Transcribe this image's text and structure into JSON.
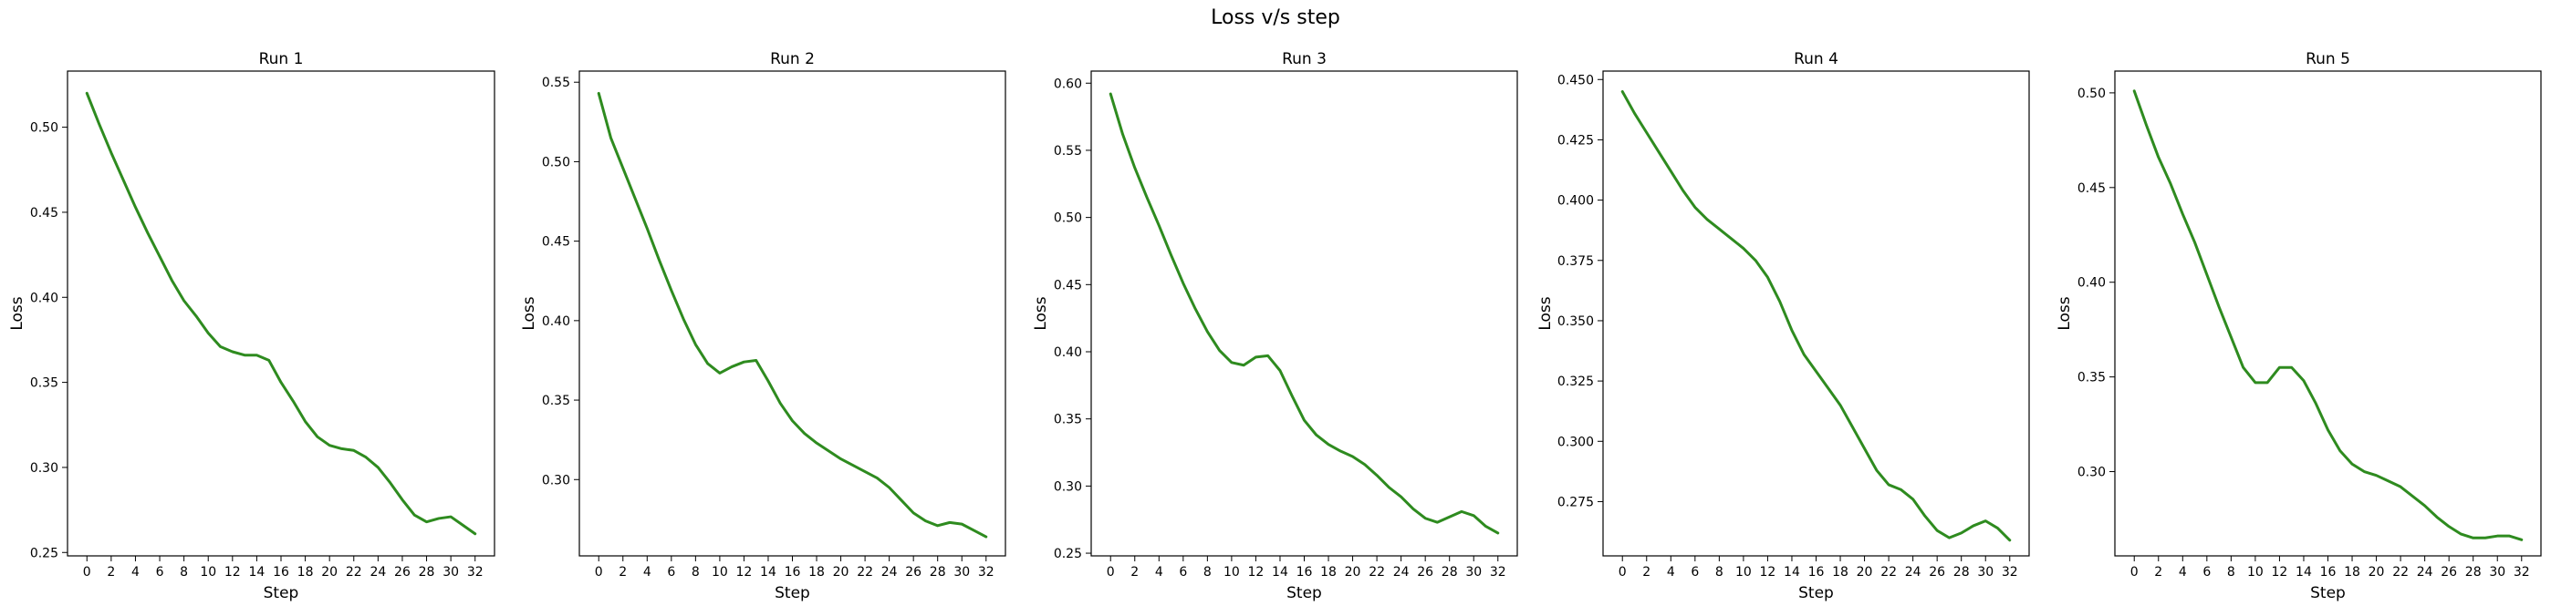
{
  "figure": {
    "suptitle": "Loss v/s step"
  },
  "style": {
    "line_color": "#2e8b1f",
    "axis_color": "#000000",
    "background": "#ffffff"
  },
  "chart_data": [
    {
      "type": "line",
      "title": "Run 1",
      "xlabel": "Step",
      "ylabel": "Loss",
      "xlim": [
        -1.6,
        33.6
      ],
      "ylim": [
        0.248,
        0.533
      ],
      "x_ticks": [
        0,
        2,
        4,
        6,
        8,
        10,
        12,
        14,
        16,
        18,
        20,
        22,
        24,
        26,
        28,
        30,
        32
      ],
      "y_ticks": [
        0.25,
        0.3,
        0.35,
        0.4,
        0.45,
        0.5
      ],
      "y_tick_labels": [
        "0.25",
        "0.30",
        "0.35",
        "0.40",
        "0.45",
        "0.50"
      ],
      "x": [
        0,
        1,
        2,
        3,
        4,
        5,
        6,
        7,
        8,
        9,
        10,
        11,
        12,
        13,
        14,
        15,
        16,
        17,
        18,
        19,
        20,
        21,
        22,
        23,
        24,
        25,
        26,
        27,
        28,
        29,
        30,
        31,
        32
      ],
      "series": [
        {
          "values": [
            0.52,
            0.502,
            0.485,
            0.469,
            0.453,
            0.438,
            0.424,
            0.41,
            0.398,
            0.389,
            0.379,
            0.371,
            0.368,
            0.366,
            0.366,
            0.363,
            0.35,
            0.339,
            0.327,
            0.318,
            0.313,
            0.311,
            0.31,
            0.306,
            0.3,
            0.291,
            0.281,
            0.272,
            0.268,
            0.27,
            0.271,
            0.266,
            0.261
          ]
        }
      ]
    },
    {
      "type": "line",
      "title": "Run 2",
      "xlabel": "Step",
      "ylabel": "Loss",
      "xlim": [
        -1.6,
        33.6
      ],
      "ylim": [
        0.252,
        0.557
      ],
      "x_ticks": [
        0,
        2,
        4,
        6,
        8,
        10,
        12,
        14,
        16,
        18,
        20,
        22,
        24,
        26,
        28,
        30,
        32
      ],
      "y_ticks": [
        0.3,
        0.35,
        0.4,
        0.45,
        0.5,
        0.55
      ],
      "y_tick_labels": [
        "0.30",
        "0.35",
        "0.40",
        "0.45",
        "0.50",
        "0.55"
      ],
      "x": [
        0,
        1,
        2,
        3,
        4,
        5,
        6,
        7,
        8,
        9,
        10,
        11,
        12,
        13,
        14,
        15,
        16,
        17,
        18,
        19,
        20,
        21,
        22,
        23,
        24,
        25,
        26,
        27,
        28,
        29,
        30,
        31,
        32
      ],
      "series": [
        {
          "values": [
            0.543,
            0.515,
            0.496,
            0.477,
            0.458,
            0.438,
            0.419,
            0.401,
            0.385,
            0.373,
            0.367,
            0.371,
            0.374,
            0.375,
            0.362,
            0.348,
            0.337,
            0.329,
            0.323,
            0.318,
            0.313,
            0.309,
            0.305,
            0.301,
            0.295,
            0.287,
            0.279,
            0.274,
            0.271,
            0.273,
            0.272,
            0.268,
            0.264
          ]
        }
      ]
    },
    {
      "type": "line",
      "title": "Run 3",
      "xlabel": "Step",
      "ylabel": "Loss",
      "xlim": [
        -1.6,
        33.6
      ],
      "ylim": [
        0.248,
        0.609
      ],
      "x_ticks": [
        0,
        2,
        4,
        6,
        8,
        10,
        12,
        14,
        16,
        18,
        20,
        22,
        24,
        26,
        28,
        30,
        32
      ],
      "y_ticks": [
        0.25,
        0.3,
        0.35,
        0.4,
        0.45,
        0.5,
        0.55,
        0.6
      ],
      "y_tick_labels": [
        "0.25",
        "0.30",
        "0.35",
        "0.40",
        "0.45",
        "0.50",
        "0.55",
        "0.60"
      ],
      "x": [
        0,
        1,
        2,
        3,
        4,
        5,
        6,
        7,
        8,
        9,
        10,
        11,
        12,
        13,
        14,
        15,
        16,
        17,
        18,
        19,
        20,
        21,
        22,
        23,
        24,
        25,
        26,
        27,
        28,
        29,
        30,
        31,
        32
      ],
      "series": [
        {
          "values": [
            0.592,
            0.562,
            0.537,
            0.515,
            0.494,
            0.472,
            0.451,
            0.432,
            0.415,
            0.401,
            0.392,
            0.39,
            0.396,
            0.397,
            0.386,
            0.367,
            0.349,
            0.338,
            0.331,
            0.326,
            0.322,
            0.316,
            0.308,
            0.299,
            0.292,
            0.283,
            0.276,
            0.273,
            0.277,
            0.281,
            0.278,
            0.27,
            0.265
          ]
        }
      ]
    },
    {
      "type": "line",
      "title": "Run 4",
      "xlabel": "Step",
      "ylabel": "Loss",
      "xlim": [
        -1.6,
        33.6
      ],
      "ylim": [
        0.2525,
        0.4535
      ],
      "x_ticks": [
        0,
        2,
        4,
        6,
        8,
        10,
        12,
        14,
        16,
        18,
        20,
        22,
        24,
        26,
        28,
        30,
        32
      ],
      "y_ticks": [
        0.275,
        0.3,
        0.325,
        0.35,
        0.375,
        0.4,
        0.425,
        0.45
      ],
      "y_tick_labels": [
        "0.275",
        "0.300",
        "0.325",
        "0.350",
        "0.375",
        "0.400",
        "0.425",
        "0.450"
      ],
      "x": [
        0,
        1,
        2,
        3,
        4,
        5,
        6,
        7,
        8,
        9,
        10,
        11,
        12,
        13,
        14,
        15,
        16,
        17,
        18,
        19,
        20,
        21,
        22,
        23,
        24,
        25,
        26,
        27,
        28,
        29,
        30,
        31,
        32
      ],
      "series": [
        {
          "values": [
            0.445,
            0.436,
            0.428,
            0.42,
            0.412,
            0.404,
            0.397,
            0.392,
            0.388,
            0.384,
            0.38,
            0.375,
            0.368,
            0.358,
            0.346,
            0.336,
            0.329,
            0.322,
            0.315,
            0.306,
            0.297,
            0.288,
            0.282,
            0.28,
            0.276,
            0.269,
            0.263,
            0.26,
            0.262,
            0.265,
            0.267,
            0.264,
            0.259
          ]
        }
      ]
    },
    {
      "type": "line",
      "title": "Run 5",
      "xlabel": "Step",
      "ylabel": "Loss",
      "xlim": [
        -1.6,
        33.6
      ],
      "ylim": [
        0.2555,
        0.5115
      ],
      "x_ticks": [
        0,
        2,
        4,
        6,
        8,
        10,
        12,
        14,
        16,
        18,
        20,
        22,
        24,
        26,
        28,
        30,
        32
      ],
      "y_ticks": [
        0.3,
        0.35,
        0.4,
        0.45,
        0.5
      ],
      "y_tick_labels": [
        "0.30",
        "0.35",
        "0.40",
        "0.45",
        "0.50"
      ],
      "x": [
        0,
        1,
        2,
        3,
        4,
        5,
        6,
        7,
        8,
        9,
        10,
        11,
        12,
        13,
        14,
        15,
        16,
        17,
        18,
        19,
        20,
        21,
        22,
        23,
        24,
        25,
        26,
        27,
        28,
        29,
        30,
        31,
        32
      ],
      "series": [
        {
          "values": [
            0.501,
            0.483,
            0.466,
            0.452,
            0.436,
            0.421,
            0.404,
            0.387,
            0.371,
            0.355,
            0.347,
            0.347,
            0.355,
            0.355,
            0.348,
            0.336,
            0.322,
            0.311,
            0.304,
            0.3,
            0.298,
            0.295,
            0.292,
            0.287,
            0.282,
            0.276,
            0.271,
            0.267,
            0.265,
            0.265,
            0.266,
            0.266,
            0.264
          ]
        }
      ]
    }
  ]
}
